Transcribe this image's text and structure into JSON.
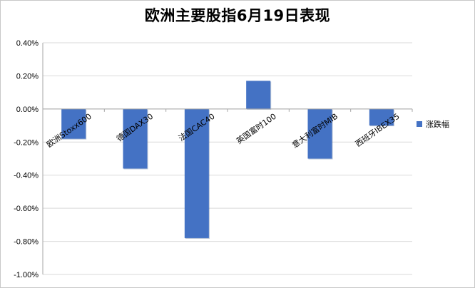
{
  "chart_data": {
    "type": "bar",
    "title": "欧洲主要股指6月19日表现",
    "categories": [
      "欧洲Stoxx600",
      "德国DAX30",
      "法国CAC40",
      "英国富时100",
      "意大利富时MIB",
      "西班牙IBEX35"
    ],
    "series": [
      {
        "name": "涨跌幅",
        "values": [
          -0.18,
          -0.36,
          -0.78,
          0.17,
          -0.3,
          -0.1
        ]
      }
    ],
    "ylim": [
      -1.0,
      0.4
    ],
    "yticks": [
      0.4,
      0.2,
      0.0,
      -0.2,
      -0.4,
      -0.6,
      -0.8,
      -1.0
    ],
    "ytick_labels": [
      "0.40%",
      "0.20%",
      "0.00%",
      "-0.20%",
      "-0.40%",
      "-0.60%",
      "-0.80%",
      "-1.00%"
    ],
    "grid": true,
    "legend_position": "right",
    "colors": {
      "bar": "#4472C4",
      "grid": "#d9d9d9",
      "axis": "#a6a6a6"
    }
  }
}
